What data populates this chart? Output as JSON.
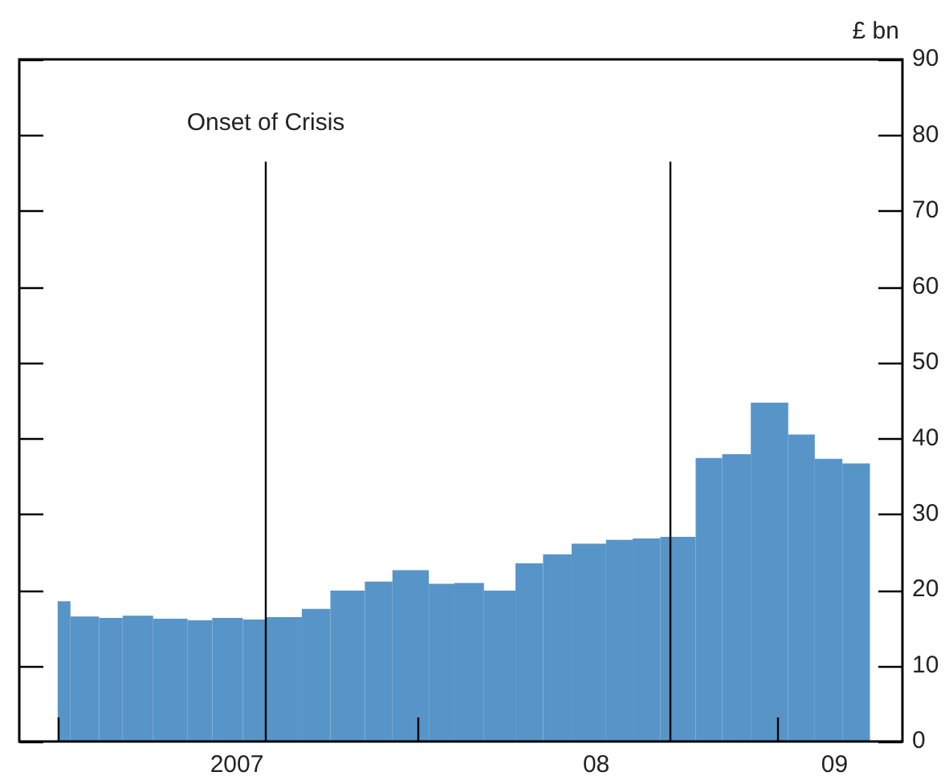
{
  "chart_data": {
    "type": "histogram",
    "ylabel": "£ bn",
    "bins": [
      "2007-01-01",
      "2007-01-14",
      "2007-02-12",
      "2007-03-08",
      "2007-04-08",
      "2007-05-13",
      "2007-06-07",
      "2007-07-08",
      "2007-07-31",
      "2007-09-06",
      "2007-10-05",
      "2007-11-09",
      "2007-12-07",
      "2008-01-13",
      "2008-02-08",
      "2008-03-09",
      "2008-04-10",
      "2008-05-08",
      "2008-06-06",
      "2008-07-11",
      "2008-08-07",
      "2008-09-04",
      "2008-10-10",
      "2008-11-06",
      "2008-12-05",
      "2009-01-12",
      "2009-02-08",
      "2009-03-08",
      "2009-04-05"
    ],
    "values": [
      18.5,
      16.5,
      16.3,
      16.6,
      16.2,
      16.0,
      16.3,
      16.1,
      16.4,
      17.5,
      19.9,
      21.1,
      22.6,
      20.8,
      20.9,
      19.9,
      23.5,
      24.7,
      26.1,
      26.6,
      26.8,
      27.0,
      37.4,
      37.9,
      44.7,
      40.5,
      37.3,
      36.7
    ],
    "color": "#5795c9",
    "xlim": [
      "2006-11-23",
      "2009-05-08"
    ],
    "xticks": [
      {
        "value": "2007-01-01",
        "label": null
      },
      {
        "value": "2007-07-02",
        "label": "2007"
      },
      {
        "value": "2008-01-01",
        "label": null
      },
      {
        "value": "2008-07-01",
        "label": "08"
      },
      {
        "value": "2009-01-01",
        "label": null
      },
      {
        "value": "2009-02-28",
        "label": "09"
      }
    ],
    "ylim": [
      0,
      90
    ],
    "yticks": [
      0,
      10,
      20,
      30,
      40,
      50,
      60,
      70,
      80,
      90
    ],
    "ref_lines": [
      {
        "axis": "x",
        "value": "2007-07-31",
        "label": "Onset of Crisis"
      },
      {
        "axis": "x",
        "value": "2008-09-13"
      }
    ]
  }
}
